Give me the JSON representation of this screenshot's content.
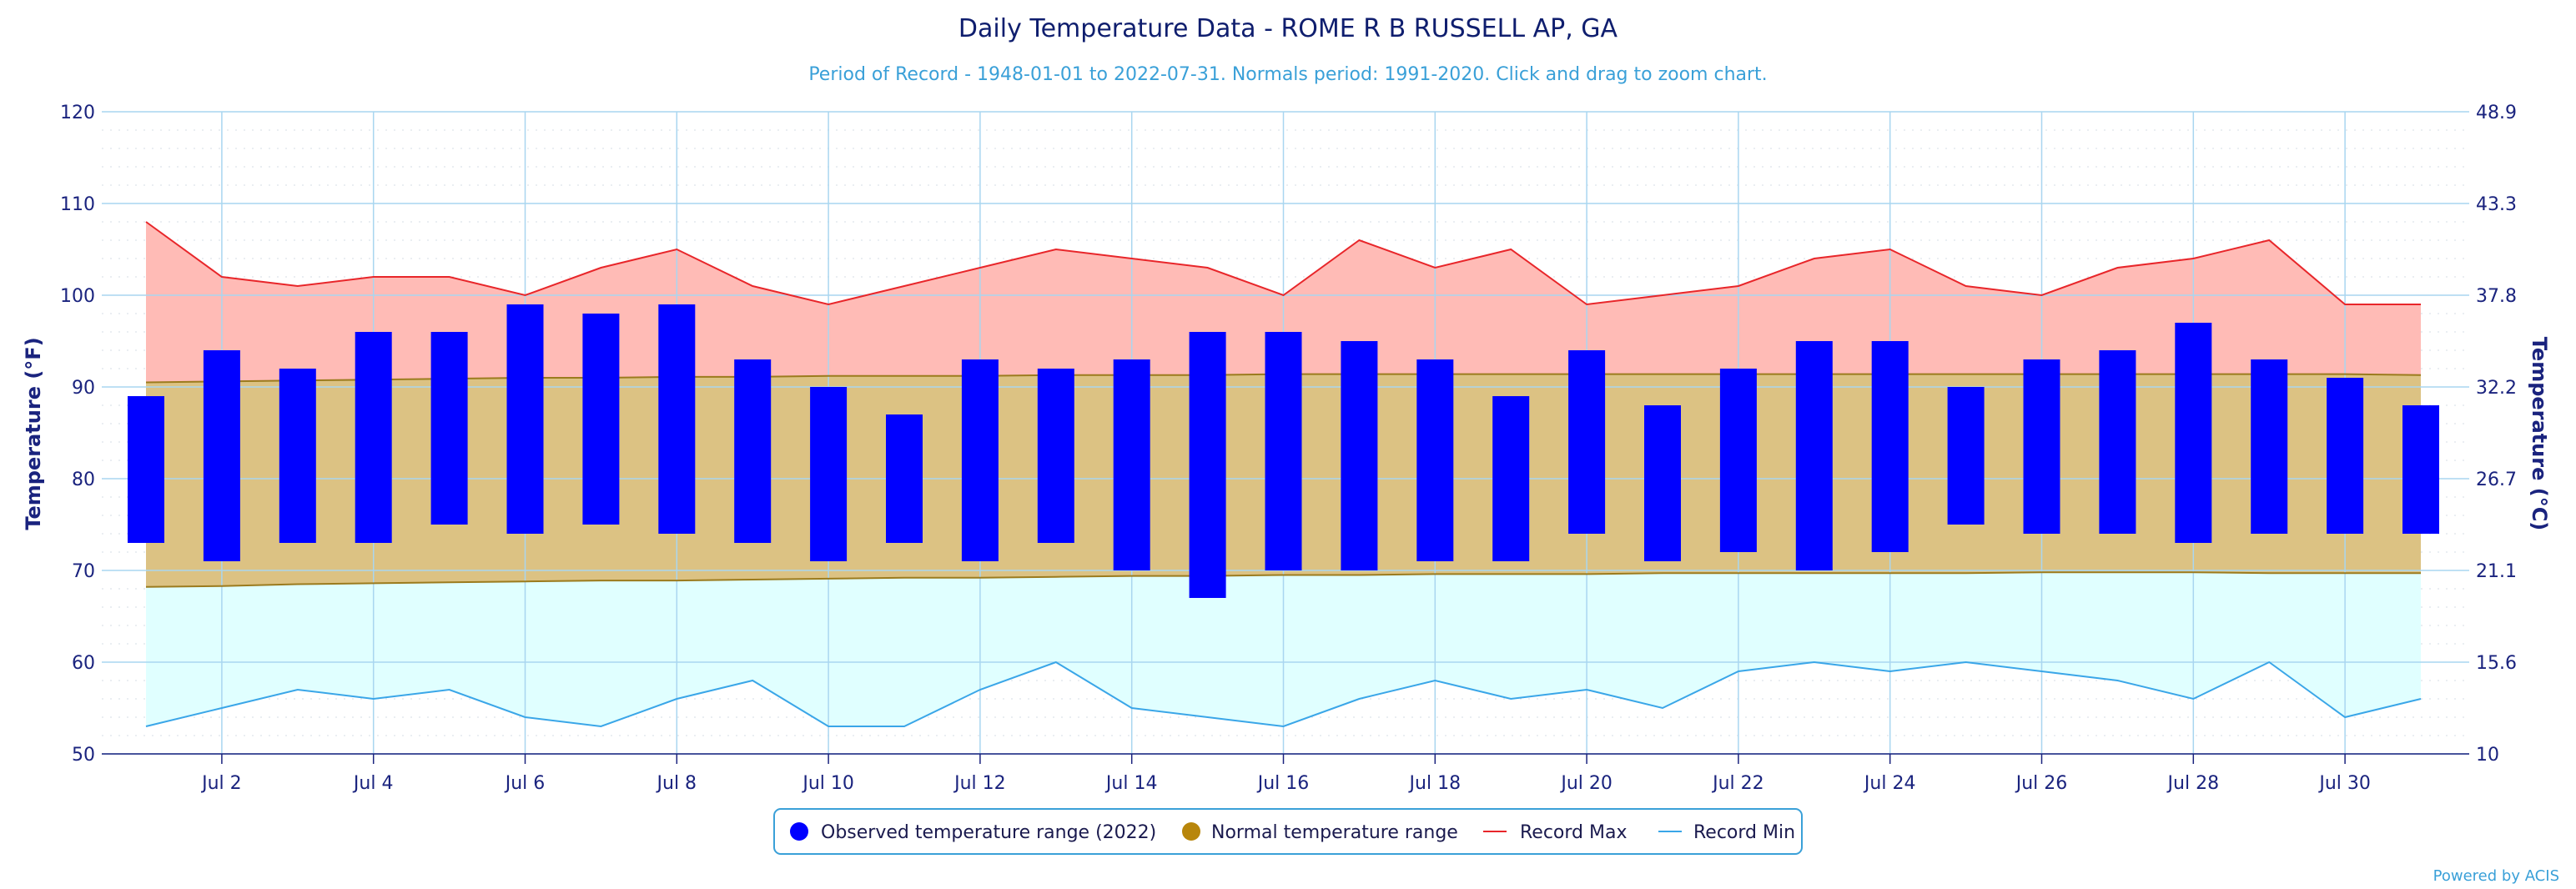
{
  "chart_data": {
    "type": "bar",
    "title": "Daily Temperature Data - ROME R B RUSSELL AP, GA",
    "subtitle": "Period of Record - 1948-01-01 to 2022-07-31. Normals period: 1991-2020. Click and drag to zoom chart.",
    "ylabel": "Temperature (°F)",
    "ylabel_right": "Temperature (°C)",
    "ylim": [
      50,
      120
    ],
    "y_ticks": [
      "50",
      "60",
      "70",
      "80",
      "90",
      "100",
      "110",
      "120"
    ],
    "y_ticks_right": [
      "10",
      "15.6",
      "21.1",
      "26.7",
      "32.2",
      "37.8",
      "43.3",
      "48.9"
    ],
    "x_days": [
      1,
      2,
      3,
      4,
      5,
      6,
      7,
      8,
      9,
      10,
      11,
      12,
      13,
      14,
      15,
      16,
      17,
      18,
      19,
      20,
      21,
      22,
      23,
      24,
      25,
      26,
      27,
      28,
      29,
      30,
      31
    ],
    "x_tick_labels": [
      "Jul 2",
      "Jul 4",
      "Jul 6",
      "Jul 8",
      "Jul 10",
      "Jul 12",
      "Jul 14",
      "Jul 16",
      "Jul 18",
      "Jul 20",
      "Jul 22",
      "Jul 24",
      "Jul 26",
      "Jul 28",
      "Jul 30"
    ],
    "grid": true,
    "legend_position": "bottom-center",
    "series": [
      {
        "name": "Observed temperature range (2022)",
        "type": "range-bar",
        "color": "#0000ff",
        "high": [
          89,
          94,
          92,
          96,
          96,
          99,
          98,
          99,
          93,
          90,
          87,
          93,
          92,
          93,
          96,
          96,
          95,
          93,
          89,
          94,
          88,
          92,
          95,
          95,
          90,
          93,
          94,
          97,
          93,
          91,
          88
        ],
        "low": [
          73,
          71,
          73,
          73,
          75,
          74,
          75,
          74,
          73,
          71,
          73,
          71,
          73,
          70,
          67,
          70,
          70,
          71,
          71,
          74,
          71,
          72,
          70,
          72,
          75,
          74,
          74,
          73,
          74,
          74,
          74
        ]
      },
      {
        "name": "Normal temperature range",
        "type": "range-area",
        "color": "#b8860b",
        "high": [
          90.5,
          90.6,
          90.7,
          90.8,
          90.9,
          91.0,
          91.0,
          91.1,
          91.1,
          91.2,
          91.2,
          91.2,
          91.3,
          91.3,
          91.3,
          91.4,
          91.4,
          91.4,
          91.4,
          91.4,
          91.4,
          91.4,
          91.4,
          91.4,
          91.4,
          91.4,
          91.4,
          91.4,
          91.4,
          91.4,
          91.3
        ],
        "low": [
          68.2,
          68.3,
          68.5,
          68.6,
          68.7,
          68.8,
          68.9,
          68.9,
          69.0,
          69.1,
          69.2,
          69.2,
          69.3,
          69.4,
          69.4,
          69.5,
          69.5,
          69.6,
          69.6,
          69.6,
          69.7,
          69.7,
          69.7,
          69.7,
          69.7,
          69.8,
          69.8,
          69.8,
          69.7,
          69.7,
          69.7
        ]
      },
      {
        "name": "Record Max",
        "type": "line",
        "color": "#e8262a",
        "values": [
          108,
          102,
          101,
          102,
          102,
          100,
          103,
          105,
          101,
          99,
          101,
          103,
          105,
          104,
          103,
          100,
          106,
          103,
          105,
          99,
          100,
          101,
          104,
          105,
          101,
          100,
          103,
          104,
          106,
          99,
          99
        ]
      },
      {
        "name": "Record Min",
        "type": "line",
        "color": "#3aa6e8",
        "values": [
          53,
          55,
          57,
          56,
          57,
          54,
          53,
          56,
          58,
          53,
          53,
          57,
          60,
          55,
          54,
          53,
          56,
          58,
          56,
          57,
          55,
          59,
          60,
          59,
          60,
          59,
          58,
          56,
          60,
          54,
          56
        ]
      }
    ],
    "colors": {
      "record_max_fill": "#ffbbb6",
      "record_min_fill": "#e0ffff",
      "normal_fill": "#dcc283",
      "grid_line": "#a9d6f0",
      "axis_text": "#1a237e"
    },
    "credit": "Powered by ACIS"
  }
}
